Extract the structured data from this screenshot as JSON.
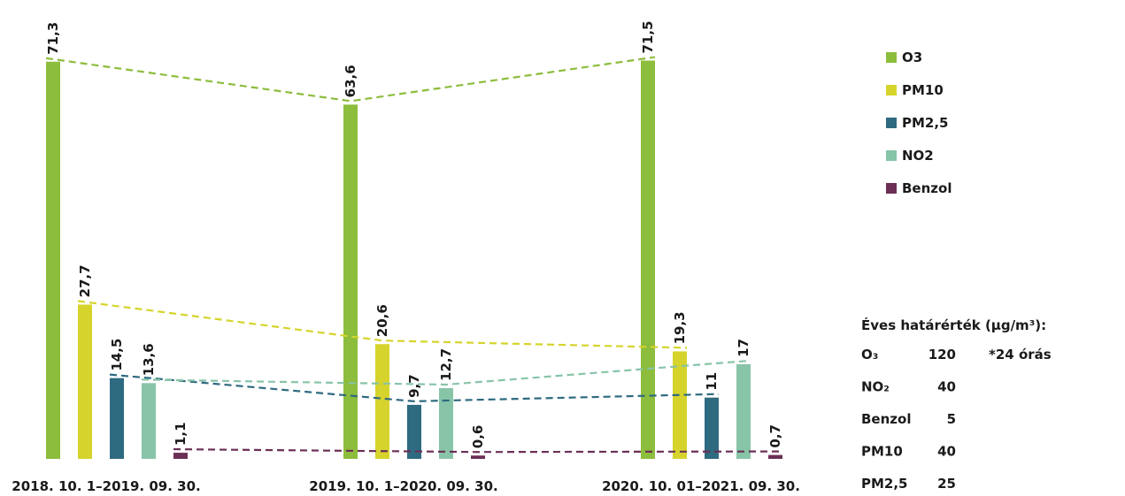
{
  "chart_data": {
    "type": "bar",
    "categories": [
      "2018. 10. 1–2019. 09. 30.",
      "2019. 10. 1–2020. 09. 30.",
      "2020. 10. 01–2021. 09. 30."
    ],
    "series": [
      {
        "name": "O3",
        "color": "#8cbd3c",
        "values": [
          71.3,
          63.6,
          71.5
        ],
        "value_labels": [
          "71,3",
          "63,6",
          "71,5"
        ]
      },
      {
        "name": "PM10",
        "color": "#d6d42c",
        "values": [
          27.7,
          20.6,
          19.3
        ],
        "value_labels": [
          "27,7",
          "20,6",
          "19,3"
        ]
      },
      {
        "name": "PM2,5",
        "color": "#2e6a80",
        "values": [
          14.5,
          9.7,
          11
        ],
        "value_labels": [
          "14,5",
          "9,7",
          "11"
        ]
      },
      {
        "name": "NO2",
        "color": "#88c4a8",
        "values": [
          13.6,
          12.7,
          17
        ],
        "value_labels": [
          "13,6",
          "12,7",
          "17"
        ]
      },
      {
        "name": "Benzol",
        "color": "#6b2f55",
        "values": [
          1.1,
          0.6,
          0.7
        ],
        "value_labels": [
          "1,1",
          "0,6",
          "0,7"
        ]
      }
    ],
    "ylim": [
      0,
      80
    ]
  },
  "limits": {
    "title": "Éves határérték (µg/m³):",
    "rows": [
      [
        "O₃",
        "120",
        "*24 órás"
      ],
      [
        "NO₂",
        "40"
      ],
      [
        "Benzol",
        "5"
      ],
      [
        "PM10",
        "40"
      ],
      [
        "PM2,5",
        "25"
      ]
    ]
  }
}
